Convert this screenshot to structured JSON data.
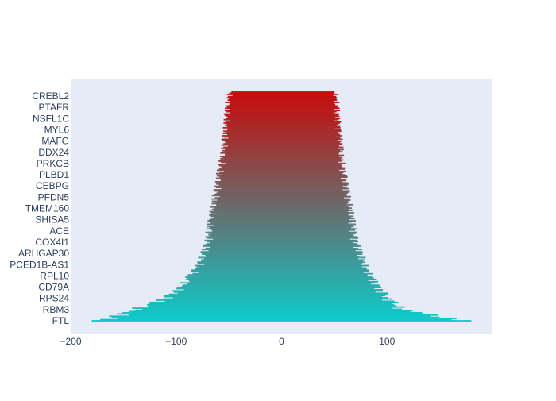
{
  "chart_data": {
    "type": "bar",
    "orientation": "horizontal",
    "title": "",
    "xlabel": "",
    "ylabel": "",
    "xlim": [
      -200,
      200
    ],
    "xticks": [
      -200,
      -100,
      0,
      100
    ],
    "xtick_labels": [
      "−200",
      "−100",
      "0",
      "100"
    ],
    "categories": [
      "FTL",
      "RBM3",
      "RPS24",
      "CD79A",
      "RPL10",
      "PCED1B-AS1",
      "ARHGAP30",
      "COX4I1",
      "ACE",
      "SHISA5",
      "TMEM160",
      "PFDN5",
      "CEBPG",
      "PLBD1",
      "PRKCB",
      "DDX24",
      "MAFG",
      "MYL6",
      "NSFL1C",
      "PTAFR",
      "CREBL2"
    ],
    "envelope": {
      "left": [
        -180,
        -145,
        -115,
        -100,
        -90,
        -82,
        -77,
        -74,
        -72,
        -70,
        -68,
        -66,
        -64,
        -62,
        -60,
        -58,
        -57,
        -56,
        -55,
        -54,
        -52
      ],
      "right": [
        180,
        120,
        105,
        96,
        88,
        82,
        78,
        74,
        72,
        70,
        68,
        66,
        64,
        62,
        60,
        59,
        58,
        57,
        56,
        55,
        54
      ]
    },
    "color_bottom": "#0ccbcb",
    "color_top": "#c80c0c",
    "grid": false,
    "legend": "none",
    "plot_background": "#e5ecf6"
  }
}
